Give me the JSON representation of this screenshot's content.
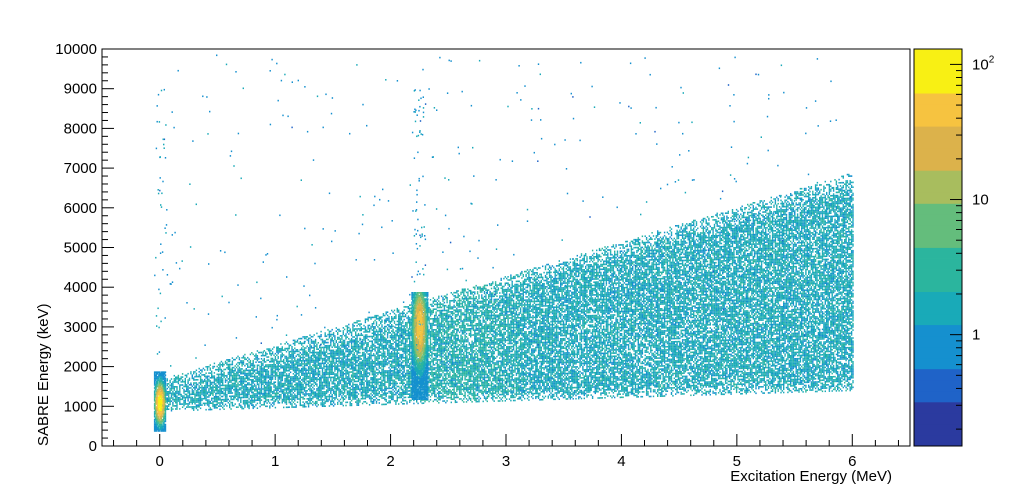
{
  "chart_data": {
    "type": "heatmap",
    "title": "",
    "xlabel": "Excitation Energy (MeV)",
    "ylabel": "SABRE Energy (keV)",
    "xlim": [
      -0.5,
      6.5
    ],
    "ylim": [
      0,
      10000
    ],
    "x_ticks": [
      "0",
      "1",
      "2",
      "3",
      "4",
      "5",
      "6"
    ],
    "y_ticks": [
      "0",
      "1000",
      "2000",
      "3000",
      "4000",
      "5000",
      "6000",
      "7000",
      "8000",
      "9000",
      "10000"
    ],
    "z_scale": "log",
    "z_range": [
      0.15,
      130
    ],
    "z_ticks": [
      {
        "label": "1",
        "value": 1
      },
      {
        "label": "10",
        "value": 10
      },
      {
        "label": "10",
        "sup": "2",
        "value": 100
      }
    ],
    "colormap": [
      "#2b3a9f",
      "#1f63c8",
      "#1590cf",
      "#19aab8",
      "#2bb59e",
      "#64bd7c",
      "#a8bd5e",
      "#dcb24b",
      "#f6c340",
      "#f8f014"
    ],
    "regions": [
      {
        "name": "ground-state-peak",
        "x_center": 0.0,
        "x_width": 0.05,
        "y_range": [
          400,
          1900
        ],
        "peak_counts": 120
      },
      {
        "name": "excited-state-peak",
        "x_center": 2.25,
        "x_width": 0.07,
        "y_range": [
          1200,
          3900
        ],
        "peak_counts": 60
      },
      {
        "name": "continuum",
        "x_range": [
          0.0,
          6.0
        ],
        "y_low_range": [
          900,
          2200
        ],
        "y_high_range": [
          1700,
          6900
        ],
        "typical_counts": 1.5
      }
    ],
    "grid": false,
    "legend": "colorbar-right"
  }
}
